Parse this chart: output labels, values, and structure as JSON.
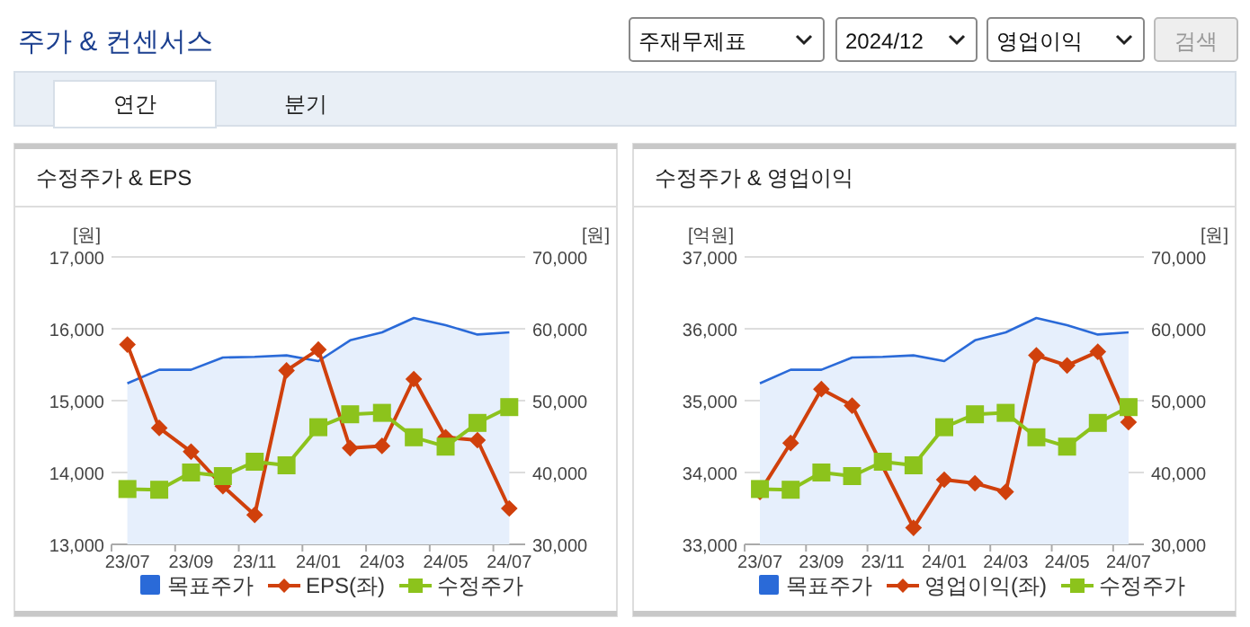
{
  "chart_data": [
    {
      "type": "line",
      "title": "수정주가 & EPS",
      "ylabel": "[원]",
      "y2label": "[원]",
      "annotations": [
        "주가 & 컨센서스",
        "주재무제표",
        "2024/12",
        "영업이익",
        "검색",
        "연간",
        "분기"
      ],
      "categories": [
        "23/07",
        null,
        "23/09",
        null,
        "23/11",
        null,
        "24/01",
        null,
        "24/03",
        null,
        "24/05",
        null,
        "24/07"
      ],
      "ylim": [
        13000,
        17000
      ],
      "yticks": [
        {
          "value": 13000,
          "label": "13,000"
        },
        {
          "value": 14000,
          "label": "14,000"
        },
        {
          "value": 15000,
          "label": "15,000"
        },
        {
          "value": 16000,
          "label": "16,000"
        },
        {
          "value": 17000,
          "label": "17,000"
        }
      ],
      "y2lim": [
        30000,
        70000
      ],
      "y2ticks": [
        {
          "value": 30000,
          "label": "30,000"
        },
        {
          "value": 40000,
          "label": "40,000"
        },
        {
          "value": 50000,
          "label": "50,000"
        },
        {
          "value": 60000,
          "label": "60,000"
        },
        {
          "value": 70000,
          "label": "70,000"
        }
      ],
      "grid": "y",
      "legend": "bottom",
      "series": [
        {
          "name": "목표주가",
          "type": "area",
          "axis": "y2",
          "color": "#2a6ad8",
          "values": [
            52400,
            54300,
            54300,
            56000,
            56100,
            56300,
            55500,
            58400,
            59500,
            61500,
            60500,
            59200,
            59500
          ]
        },
        {
          "name": "EPS(좌)",
          "type": "line",
          "marker": "diamond",
          "color": "#d0400c",
          "values": [
            15780,
            14620,
            14290,
            13810,
            13410,
            15420,
            15710,
            14340,
            14370,
            15300,
            14490,
            14450,
            13500
          ]
        },
        {
          "name": "수정주가",
          "type": "line",
          "marker": "square",
          "axis": "y2",
          "color": "#8cc31c",
          "values": [
            37700,
            37600,
            40000,
            39500,
            41500,
            41000,
            46300,
            48100,
            48300,
            44900,
            43600,
            46900,
            49100
          ]
        }
      ]
    },
    {
      "type": "line",
      "title": "수정주가 & 영업이익",
      "ylabel": "[억원]",
      "y2label": "[원]",
      "categories": [
        "23/07",
        null,
        "23/09",
        null,
        "23/11",
        null,
        "24/01",
        null,
        "24/03",
        null,
        "24/05",
        null,
        "24/07"
      ],
      "ylim": [
        33000,
        37000
      ],
      "yticks": [
        {
          "value": 33000,
          "label": "33,000"
        },
        {
          "value": 34000,
          "label": "34,000"
        },
        {
          "value": 35000,
          "label": "35,000"
        },
        {
          "value": 36000,
          "label": "36,000"
        },
        {
          "value": 37000,
          "label": "37,000"
        }
      ],
      "y2lim": [
        30000,
        70000
      ],
      "y2ticks": [
        {
          "value": 30000,
          "label": "30,000"
        },
        {
          "value": 40000,
          "label": "40,000"
        },
        {
          "value": 50000,
          "label": "50,000"
        },
        {
          "value": 60000,
          "label": "60,000"
        },
        {
          "value": 70000,
          "label": "70,000"
        }
      ],
      "grid": "y",
      "legend": "bottom",
      "series": [
        {
          "name": "목표주가",
          "type": "area",
          "axis": "y2",
          "color": "#2a6ad8",
          "values": [
            52400,
            54300,
            54300,
            56000,
            56100,
            56300,
            55500,
            58400,
            59500,
            61500,
            60500,
            59200,
            59500
          ]
        },
        {
          "name": "영업이익(좌)",
          "type": "line",
          "marker": "diamond",
          "color": "#d0400c",
          "values": [
            33730,
            34410,
            35160,
            34930,
            null,
            33230,
            33900,
            33850,
            33730,
            35630,
            35490,
            35680,
            34700
          ]
        },
        {
          "name": "수정주가",
          "type": "line",
          "marker": "square",
          "axis": "y2",
          "color": "#8cc31c",
          "values": [
            37700,
            37600,
            40000,
            39500,
            41500,
            41000,
            46300,
            48100,
            48300,
            44900,
            43600,
            46900,
            49100
          ]
        }
      ]
    }
  ]
}
